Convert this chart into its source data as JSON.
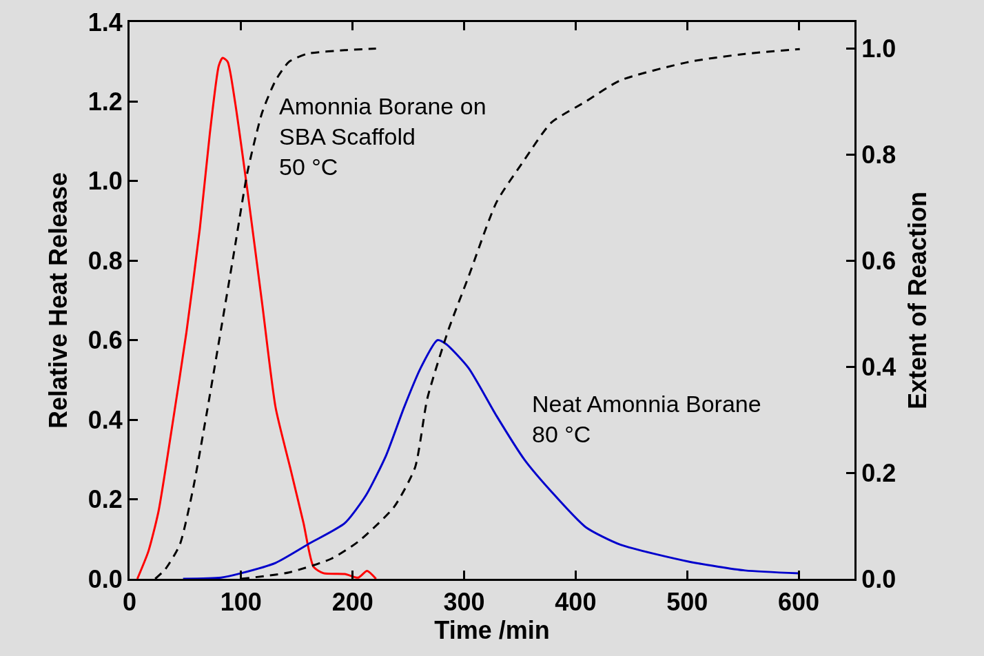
{
  "chart_data": {
    "type": "line",
    "xlabel": "Time /min",
    "ylabel": "Relative Heat Release",
    "y2label": "Extent of Reaction",
    "xlim": [
      0,
      650
    ],
    "xticks": [
      0,
      100,
      200,
      300,
      400,
      500,
      600
    ],
    "ylim": [
      0,
      1.4
    ],
    "yticks": [
      {
        "value": 0,
        "label": "0.0"
      },
      {
        "value": 0.2,
        "label": "0.2"
      },
      {
        "value": 0.4,
        "label": "0.4"
      },
      {
        "value": 0.6,
        "label": "0.6"
      },
      {
        "value": 0.8,
        "label": "0.8"
      },
      {
        "value": 1,
        "label": "1.0"
      },
      {
        "value": 1.2,
        "label": "1.2"
      },
      {
        "value": 1.4,
        "label": "1.4"
      }
    ],
    "y2lim": [
      0,
      1.05
    ],
    "y2ticks": [
      {
        "value": 0,
        "label": "0.0"
      },
      {
        "value": 0.2,
        "label": "0.2"
      },
      {
        "value": 0.4,
        "label": "0.4"
      },
      {
        "value": 0.6,
        "label": "0.6"
      },
      {
        "value": 0.8,
        "label": "0.8"
      },
      {
        "value": 1,
        "label": "1.0"
      }
    ],
    "grid": false,
    "marker": "none",
    "series": [
      {
        "color": "#ff0000",
        "line_style": "solid",
        "x": [
          7,
          17,
          26,
          38,
          51,
          63,
          72,
          80,
          83.5,
          88,
          94,
          106,
          119,
          131,
          144,
          156,
          165,
          174,
          193,
          205,
          213,
          221
        ],
        "values": [
          0,
          0.07,
          0.17,
          0.38,
          0.62,
          0.88,
          1.12,
          1.29,
          1.31,
          1.3,
          1.21,
          0.97,
          0.69,
          0.43,
          0.28,
          0.14,
          0.03,
          0.014,
          0.012,
          0.003,
          0.02,
          0
        ]
      },
      {
        "color": "#0000cc",
        "line_style": "solid",
        "x": [
          48,
          82,
          100,
          131,
          162,
          193,
          212,
          230,
          246,
          261,
          276,
          284,
          304,
          329,
          354,
          378,
          409,
          440,
          502,
          552,
          600
        ],
        "values": [
          0,
          0.003,
          0.014,
          0.04,
          0.09,
          0.14,
          0.21,
          0.31,
          0.43,
          0.53,
          0.6,
          0.59,
          0.53,
          0.41,
          0.3,
          0.22,
          0.13,
          0.086,
          0.043,
          0.021,
          0.014
        ]
      },
      {
        "color": "#000000",
        "line_style": "dashed",
        "axis": "y2",
        "x": [
          23,
          32,
          45,
          57,
          69,
          82,
          94,
          106,
          119,
          131,
          143,
          159,
          193,
          221
        ],
        "values": [
          0,
          0.018,
          0.064,
          0.17,
          0.31,
          0.47,
          0.62,
          0.77,
          0.88,
          0.94,
          0.975,
          0.99,
          0.997,
          1.0
        ]
      },
      {
        "color": "#000000",
        "line_style": "dashed",
        "axis": "y2",
        "x": [
          100,
          143,
          181,
          205,
          237,
          256,
          267,
          286,
          304,
          329,
          354,
          378,
          409,
          440,
          502,
          552,
          601
        ],
        "values": [
          0,
          0.012,
          0.038,
          0.07,
          0.135,
          0.21,
          0.34,
          0.47,
          0.57,
          0.71,
          0.79,
          0.86,
          0.9,
          0.94,
          0.975,
          0.99,
          0.999
        ]
      }
    ],
    "annotations": [
      "Amonnia Borane on\nSBA Scaffold\n50 °C",
      "Neat Amonnia Borane\n80 °C"
    ]
  }
}
